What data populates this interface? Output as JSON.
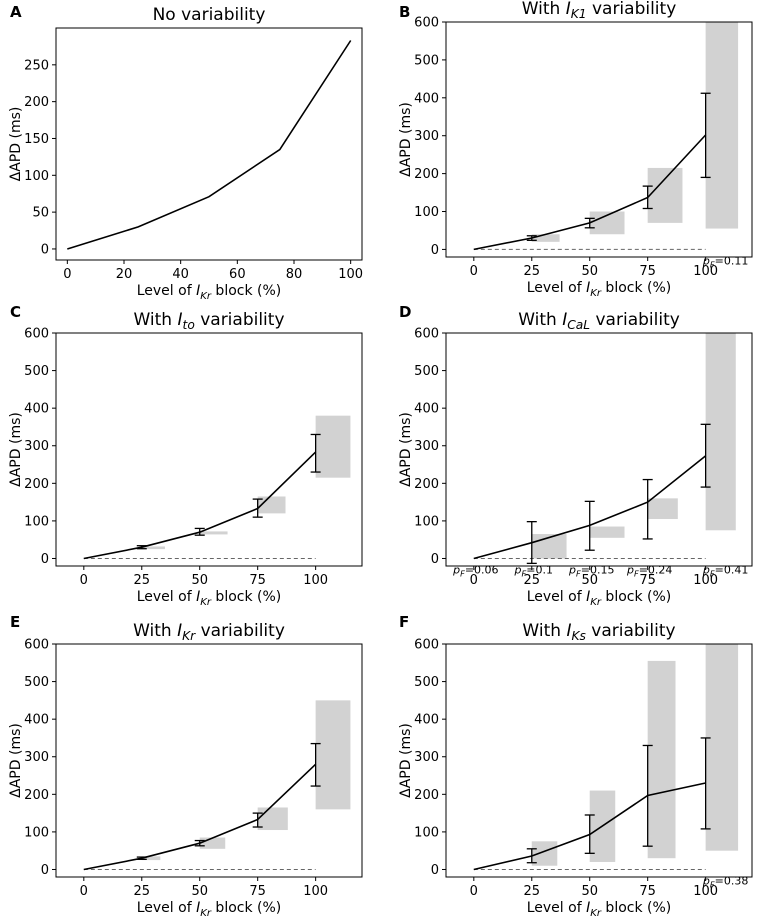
{
  "chart_data": [
    {
      "panel": "A",
      "type": "line",
      "title": "No variability",
      "title_parts": [
        {
          "t": "No variability"
        }
      ],
      "xlabel_parts": [
        {
          "t": "Level of "
        },
        {
          "t": "I"
        },
        {
          "t": "Kr",
          "sub": true
        },
        {
          "t": " block (%)"
        }
      ],
      "ylabel": "ΔAPD (ms)",
      "xlim": [
        -4,
        104
      ],
      "ylim": [
        -15,
        300
      ],
      "xticks": [
        0,
        20,
        40,
        60,
        80,
        100
      ],
      "yticks": [
        0,
        50,
        100,
        150,
        200,
        250
      ],
      "x": [
        0,
        25,
        50,
        75,
        100
      ],
      "y": [
        0,
        30,
        71,
        135,
        283
      ]
    },
    {
      "panel": "B",
      "type": "line",
      "title_parts": [
        {
          "t": "With "
        },
        {
          "t": "I"
        },
        {
          "t": "K1",
          "sub": true
        },
        {
          "t": " variability"
        }
      ],
      "xlabel_parts": [
        {
          "t": "Level of "
        },
        {
          "t": "I"
        },
        {
          "t": "Kr",
          "sub": true
        },
        {
          "t": " block (%)"
        }
      ],
      "ylabel": "ΔAPD (ms)",
      "xlim": [
        -12,
        120
      ],
      "ylim": [
        -20,
        600
      ],
      "xticks": [
        0,
        25,
        50,
        75,
        100
      ],
      "yticks": [
        0,
        100,
        200,
        300,
        400,
        500,
        600
      ],
      "x": [
        0,
        25,
        50,
        75,
        100
      ],
      "y": [
        0,
        30,
        70,
        137,
        302
      ],
      "errorbars": [
        [
          0,
          0
        ],
        [
          24,
          36
        ],
        [
          57,
          82
        ],
        [
          108,
          167
        ],
        [
          190,
          412
        ]
      ],
      "histograms": [
        {
          "x": 25,
          "lo": 20,
          "hi": 40,
          "width": 12
        },
        {
          "x": 50,
          "lo": 40,
          "hi": 100,
          "width": 15
        },
        {
          "x": 75,
          "lo": 70,
          "hi": 215,
          "width": 15
        },
        {
          "x": 100,
          "lo": 55,
          "hi": 600,
          "width": 14
        }
      ],
      "p_values": [
        {
          "x": 100,
          "label": "0.11"
        }
      ]
    },
    {
      "panel": "C",
      "type": "line",
      "title_parts": [
        {
          "t": "With "
        },
        {
          "t": "I"
        },
        {
          "t": "to",
          "sub": true
        },
        {
          "t": " variability"
        }
      ],
      "xlabel_parts": [
        {
          "t": "Level of "
        },
        {
          "t": "I"
        },
        {
          "t": "Kr",
          "sub": true
        },
        {
          "t": " block (%)"
        }
      ],
      "ylabel": "ΔAPD (ms)",
      "xlim": [
        -12,
        120
      ],
      "ylim": [
        -20,
        600
      ],
      "xticks": [
        0,
        25,
        50,
        75,
        100
      ],
      "yticks": [
        0,
        100,
        200,
        300,
        400,
        500,
        600
      ],
      "x": [
        0,
        25,
        50,
        75,
        100
      ],
      "y": [
        0,
        30,
        70,
        133,
        283
      ],
      "errorbars": [
        [
          0,
          0
        ],
        [
          26,
          34
        ],
        [
          62,
          80
        ],
        [
          110,
          158
        ],
        [
          230,
          330
        ]
      ],
      "histograms": [
        {
          "x": 25,
          "lo": 25,
          "hi": 32,
          "width": 10
        },
        {
          "x": 50,
          "lo": 64,
          "hi": 72,
          "width": 12
        },
        {
          "x": 75,
          "lo": 120,
          "hi": 165,
          "width": 12
        },
        {
          "x": 100,
          "lo": 215,
          "hi": 380,
          "width": 15
        }
      ],
      "p_values": []
    },
    {
      "panel": "D",
      "type": "line",
      "title_parts": [
        {
          "t": "With "
        },
        {
          "t": "I"
        },
        {
          "t": "CaL",
          "sub": true
        },
        {
          "t": " variability"
        }
      ],
      "xlabel_parts": [
        {
          "t": "Level of "
        },
        {
          "t": "I"
        },
        {
          "t": "Kr",
          "sub": true
        },
        {
          "t": " block (%)"
        }
      ],
      "ylabel": "ΔAPD (ms)",
      "xlim": [
        -12,
        120
      ],
      "ylim": [
        -20,
        600
      ],
      "xticks": [
        0,
        25,
        50,
        75,
        100
      ],
      "yticks": [
        0,
        100,
        200,
        300,
        400,
        500,
        600
      ],
      "x": [
        0,
        25,
        50,
        75,
        100
      ],
      "y": [
        0,
        42,
        88,
        150,
        273
      ],
      "errorbars": [
        [
          0,
          0
        ],
        [
          -13,
          98
        ],
        [
          22,
          152
        ],
        [
          52,
          210
        ],
        [
          190,
          357
        ]
      ],
      "histograms": [
        {
          "x": 25,
          "lo": 0,
          "hi": 65,
          "width": 15
        },
        {
          "x": 50,
          "lo": 55,
          "hi": 85,
          "width": 15
        },
        {
          "x": 75,
          "lo": 105,
          "hi": 160,
          "width": 13
        },
        {
          "x": 100,
          "lo": 75,
          "hi": 600,
          "width": 13
        }
      ],
      "p_values": [
        {
          "x": 0,
          "label": "0.06"
        },
        {
          "x": 25,
          "label": "0.1"
        },
        {
          "x": 50,
          "label": "0.15"
        },
        {
          "x": 75,
          "label": "0.24"
        },
        {
          "x": 100,
          "label": "0.41"
        }
      ]
    },
    {
      "panel": "E",
      "type": "line",
      "title_parts": [
        {
          "t": "With "
        },
        {
          "t": "I"
        },
        {
          "t": "Kr",
          "sub": true
        },
        {
          "t": " variability"
        }
      ],
      "xlabel_parts": [
        {
          "t": "Level of "
        },
        {
          "t": "I"
        },
        {
          "t": "Kr",
          "sub": true
        },
        {
          "t": " block (%)"
        }
      ],
      "ylabel": "ΔAPD (ms)",
      "xlim": [
        -12,
        120
      ],
      "ylim": [
        -20,
        600
      ],
      "xticks": [
        0,
        25,
        50,
        75,
        100
      ],
      "yticks": [
        0,
        100,
        200,
        300,
        400,
        500,
        600
      ],
      "x": [
        0,
        25,
        50,
        75,
        100
      ],
      "y": [
        0,
        30,
        70,
        133,
        280
      ],
      "errorbars": [
        [
          0,
          0
        ],
        [
          27,
          33
        ],
        [
          63,
          77
        ],
        [
          113,
          150
        ],
        [
          222,
          335
        ]
      ],
      "histograms": [
        {
          "x": 25,
          "lo": 25,
          "hi": 35,
          "width": 8
        },
        {
          "x": 50,
          "lo": 55,
          "hi": 85,
          "width": 11
        },
        {
          "x": 75,
          "lo": 105,
          "hi": 165,
          "width": 13
        },
        {
          "x": 100,
          "lo": 160,
          "hi": 450,
          "width": 15
        }
      ],
      "p_values": []
    },
    {
      "panel": "F",
      "type": "line",
      "title_parts": [
        {
          "t": "With "
        },
        {
          "t": "I"
        },
        {
          "t": "Ks",
          "sub": true
        },
        {
          "t": " variability"
        }
      ],
      "xlabel_parts": [
        {
          "t": "Level of "
        },
        {
          "t": "I"
        },
        {
          "t": "Kr",
          "sub": true
        },
        {
          "t": " block (%)"
        }
      ],
      "ylabel": "ΔAPD (ms)",
      "xlim": [
        -12,
        120
      ],
      "ylim": [
        -20,
        600
      ],
      "xticks": [
        0,
        25,
        50,
        75,
        100
      ],
      "yticks": [
        0,
        100,
        200,
        300,
        400,
        500,
        600
      ],
      "x": [
        0,
        25,
        50,
        75,
        100
      ],
      "y": [
        0,
        36,
        93,
        197,
        230
      ],
      "errorbars": [
        [
          0,
          0
        ],
        [
          18,
          55
        ],
        [
          43,
          145
        ],
        [
          62,
          330
        ],
        [
          108,
          350
        ]
      ],
      "histograms": [
        {
          "x": 25,
          "lo": 10,
          "hi": 75,
          "width": 11
        },
        {
          "x": 50,
          "lo": 20,
          "hi": 210,
          "width": 11
        },
        {
          "x": 75,
          "lo": 30,
          "hi": 555,
          "width": 12
        },
        {
          "x": 100,
          "lo": 50,
          "hi": 600,
          "width": 14
        }
      ],
      "p_values": [
        {
          "x": 100,
          "label": "0.38"
        }
      ]
    }
  ]
}
